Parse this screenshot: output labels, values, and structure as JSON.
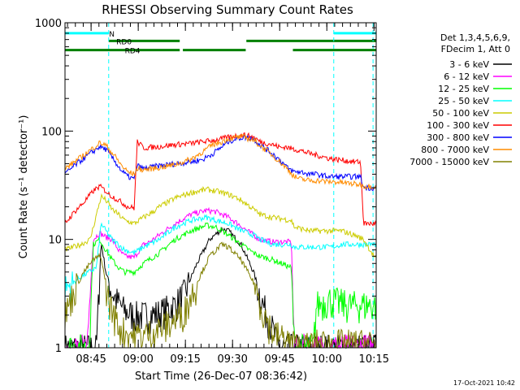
{
  "chart_data": {
    "type": "line",
    "title": "RHESSI Observing Summary Count Rates",
    "xlabel": "Start Time (26-Dec-07 08:36:42)",
    "ylabel": "Count Rate (s⁻¹ detector⁻¹)",
    "yscale": "log",
    "ylim": [
      1,
      1000
    ],
    "xlim_minutes": [
      0,
      99
    ],
    "x_ticks": [
      {
        "m": 8.3,
        "label": "08:45"
      },
      {
        "m": 23.3,
        "label": "09:00"
      },
      {
        "m": 38.3,
        "label": "09:15"
      },
      {
        "m": 53.3,
        "label": "09:30"
      },
      {
        "m": 68.3,
        "label": "09:45"
      },
      {
        "m": 83.3,
        "label": "10:00"
      },
      {
        "m": 98.3,
        "label": "10:15"
      }
    ],
    "y_ticks": [
      {
        "v": 1,
        "label": "1"
      },
      {
        "v": 10,
        "label": "10"
      },
      {
        "v": 100,
        "label": "100"
      },
      {
        "v": 1000,
        "label": "1000"
      }
    ],
    "legend_header": [
      "Det 1,3,4,5,6,9,",
      "FDecim 1, Att 0"
    ],
    "footer_date": "17-Oct-2021 10:42",
    "bars": [
      {
        "label": "N",
        "color": "#00ffff",
        "segments": [
          [
            0,
            13.9
          ],
          [
            85.5,
            99
          ]
        ],
        "level": 800
      },
      {
        "label": "RD0",
        "color": "#008000",
        "segments": [
          [
            13.9,
            36.5
          ],
          [
            57.7,
            99
          ]
        ],
        "level": 680
      },
      {
        "label": "RD4",
        "color": "#008000",
        "segments": [
          [
            0,
            36.5
          ],
          [
            37.5,
            57.5
          ],
          [
            72.5,
            99
          ]
        ],
        "level": 560
      }
    ],
    "vlines": [
      {
        "m": 13.9,
        "color": "#00ffff"
      },
      {
        "m": 85.5,
        "color": "#00ffff"
      },
      {
        "m": 98.0,
        "color": "#00ffff"
      }
    ],
    "series": [
      {
        "name": "3 - 6 keV",
        "color": "#000000",
        "points": [
          [
            0,
            1
          ],
          [
            5,
            1
          ],
          [
            10,
            1
          ],
          [
            11.5,
            9.5
          ],
          [
            13,
            5
          ],
          [
            15,
            3.2
          ],
          [
            17,
            2.6
          ],
          [
            19,
            2.2
          ],
          [
            22,
            2
          ],
          [
            25,
            2
          ],
          [
            30,
            2.1
          ],
          [
            35,
            2.5
          ],
          [
            38,
            3.2
          ],
          [
            42,
            6
          ],
          [
            46,
            10
          ],
          [
            50,
            12.5
          ],
          [
            52,
            12
          ],
          [
            56,
            9
          ],
          [
            60,
            5
          ],
          [
            63,
            2.5
          ],
          [
            66,
            1.5
          ],
          [
            68,
            1
          ],
          [
            99,
            1
          ]
        ]
      },
      {
        "name": "6 - 12 keV",
        "color": "#ff00ff",
        "points": [
          [
            0,
            1
          ],
          [
            7,
            1
          ],
          [
            9,
            10
          ],
          [
            11,
            11.5
          ],
          [
            13,
            10.5
          ],
          [
            15,
            10
          ],
          [
            17,
            8
          ],
          [
            19,
            7
          ],
          [
            22,
            6.8
          ],
          [
            25,
            9
          ],
          [
            27,
            9.5
          ],
          [
            30,
            11
          ],
          [
            35,
            14
          ],
          [
            40,
            17
          ],
          [
            45,
            18.5
          ],
          [
            48,
            18
          ],
          [
            52,
            16
          ],
          [
            55,
            14
          ],
          [
            58,
            12
          ],
          [
            60,
            11
          ],
          [
            62,
            10
          ],
          [
            66,
            9.5
          ],
          [
            72,
            9.5
          ],
          [
            73,
            1
          ],
          [
            99,
            1
          ]
        ]
      },
      {
        "name": "12 - 25 keV",
        "color": "#00ff00",
        "points": [
          [
            0,
            1
          ],
          [
            7,
            1
          ],
          [
            8,
            1.5
          ],
          [
            9,
            9
          ],
          [
            11,
            10
          ],
          [
            13,
            8
          ],
          [
            15,
            6.5
          ],
          [
            17,
            5.5
          ],
          [
            19,
            5
          ],
          [
            22,
            5
          ],
          [
            25,
            6
          ],
          [
            30,
            7.5
          ],
          [
            35,
            10
          ],
          [
            40,
            12
          ],
          [
            45,
            13.5
          ],
          [
            48,
            13
          ],
          [
            52,
            11
          ],
          [
            56,
            9
          ],
          [
            60,
            7.5
          ],
          [
            62,
            7
          ],
          [
            66,
            6.5
          ],
          [
            72,
            5.5
          ],
          [
            73,
            1
          ],
          [
            79,
            1
          ],
          [
            80,
            2.5
          ],
          [
            84,
            2.8
          ],
          [
            90,
            2.5
          ],
          [
            99,
            2.5
          ]
        ]
      },
      {
        "name": "25 - 50 keV",
        "color": "#00ffff",
        "points": [
          [
            0,
            3.5
          ],
          [
            5,
            4.5
          ],
          [
            10,
            5.5
          ],
          [
            11.5,
            14
          ],
          [
            13,
            12
          ],
          [
            15,
            10
          ],
          [
            17,
            9
          ],
          [
            19,
            8
          ],
          [
            22,
            7.5
          ],
          [
            25,
            8.5
          ],
          [
            30,
            10
          ],
          [
            35,
            13
          ],
          [
            40,
            15
          ],
          [
            45,
            16
          ],
          [
            48,
            15
          ],
          [
            52,
            14
          ],
          [
            55,
            12.5
          ],
          [
            58,
            11.5
          ],
          [
            60,
            11
          ],
          [
            62,
            10
          ],
          [
            66,
            9
          ],
          [
            72,
            9
          ],
          [
            73,
            8.5
          ],
          [
            78,
            8.5
          ],
          [
            85,
            8.5
          ],
          [
            88,
            9
          ],
          [
            99,
            9
          ]
        ]
      },
      {
        "name": "50 - 100 keV",
        "color": "#cccc00",
        "points": [
          [
            0,
            8
          ],
          [
            5,
            9
          ],
          [
            8,
            10
          ],
          [
            11.5,
            25
          ],
          [
            13,
            23
          ],
          [
            15,
            19
          ],
          [
            17,
            17
          ],
          [
            19,
            15
          ],
          [
            22,
            14
          ],
          [
            25,
            16
          ],
          [
            28,
            18
          ],
          [
            30,
            20
          ],
          [
            35,
            24
          ],
          [
            40,
            27
          ],
          [
            45,
            29
          ],
          [
            48,
            28
          ],
          [
            52,
            26
          ],
          [
            55,
            24
          ],
          [
            58,
            21
          ],
          [
            60,
            19
          ],
          [
            62,
            17
          ],
          [
            66,
            16
          ],
          [
            72,
            15
          ],
          [
            73,
            13
          ],
          [
            78,
            12
          ],
          [
            85,
            12
          ],
          [
            88,
            12
          ],
          [
            92,
            11
          ],
          [
            95,
            10
          ],
          [
            99,
            6.5
          ]
        ]
      },
      {
        "name": "100 - 300 keV",
        "color": "#ff0000",
        "points": [
          [
            0,
            14
          ],
          [
            3,
            18
          ],
          [
            6,
            22
          ],
          [
            9,
            28
          ],
          [
            11,
            31
          ],
          [
            13,
            28
          ],
          [
            14,
            26
          ],
          [
            16,
            24
          ],
          [
            18,
            22
          ],
          [
            20,
            20
          ],
          [
            22,
            19.5
          ],
          [
            23,
            80
          ],
          [
            25,
            70
          ],
          [
            30,
            72
          ],
          [
            35,
            75
          ],
          [
            40,
            77
          ],
          [
            44,
            80
          ],
          [
            47,
            82
          ],
          [
            50,
            85
          ],
          [
            52,
            88
          ],
          [
            55,
            91
          ],
          [
            57,
            92
          ],
          [
            60,
            88
          ],
          [
            62,
            80
          ],
          [
            66,
            75
          ],
          [
            69,
            70
          ],
          [
            70,
            72
          ],
          [
            71,
            70
          ],
          [
            73,
            68
          ],
          [
            75,
            66
          ],
          [
            78,
            62
          ],
          [
            80,
            60
          ],
          [
            84,
            56
          ],
          [
            86,
            55
          ],
          [
            88,
            54
          ],
          [
            90,
            53
          ],
          [
            92,
            52
          ],
          [
            94,
            52
          ],
          [
            95,
            14
          ],
          [
            99,
            14
          ]
        ]
      },
      {
        "name": "300 - 800 keV",
        "color": "#0000ff",
        "points": [
          [
            0,
            40
          ],
          [
            3,
            48
          ],
          [
            6,
            56
          ],
          [
            9,
            65
          ],
          [
            11,
            72
          ],
          [
            13,
            68
          ],
          [
            14,
            62
          ],
          [
            16,
            52
          ],
          [
            18,
            43
          ],
          [
            20,
            38
          ],
          [
            22,
            36
          ],
          [
            23,
            48
          ],
          [
            25,
            45
          ],
          [
            30,
            48
          ],
          [
            35,
            50
          ],
          [
            40,
            52
          ],
          [
            44,
            55
          ],
          [
            47,
            62
          ],
          [
            50,
            72
          ],
          [
            52,
            80
          ],
          [
            55,
            86
          ],
          [
            57,
            88
          ],
          [
            60,
            85
          ],
          [
            62,
            75
          ],
          [
            66,
            62
          ],
          [
            69,
            52
          ],
          [
            71,
            45
          ],
          [
            73,
            42
          ],
          [
            75,
            42
          ],
          [
            78,
            40
          ],
          [
            80,
            40
          ],
          [
            84,
            38
          ],
          [
            86,
            38
          ],
          [
            90,
            38
          ],
          [
            94,
            38
          ],
          [
            95,
            30
          ],
          [
            99,
            30
          ]
        ]
      },
      {
        "name": "800 - 7000 keV",
        "color": "#ff8c00",
        "points": [
          [
            0,
            45
          ],
          [
            3,
            52
          ],
          [
            6,
            60
          ],
          [
            9,
            70
          ],
          [
            11,
            78
          ],
          [
            13,
            74
          ],
          [
            14,
            68
          ],
          [
            16,
            58
          ],
          [
            18,
            48
          ],
          [
            20,
            42
          ],
          [
            22,
            40
          ],
          [
            23,
            45
          ],
          [
            25,
            44
          ],
          [
            30,
            46
          ],
          [
            35,
            49
          ],
          [
            40,
            55
          ],
          [
            44,
            65
          ],
          [
            47,
            75
          ],
          [
            50,
            80
          ],
          [
            52,
            85
          ],
          [
            55,
            88
          ],
          [
            57,
            88
          ],
          [
            60,
            82
          ],
          [
            62,
            74
          ],
          [
            66,
            60
          ],
          [
            69,
            50
          ],
          [
            71,
            44
          ],
          [
            73,
            38
          ],
          [
            75,
            36
          ],
          [
            78,
            35
          ],
          [
            80,
            35
          ],
          [
            84,
            34
          ],
          [
            86,
            34
          ],
          [
            90,
            33
          ],
          [
            94,
            32
          ],
          [
            95,
            31
          ],
          [
            99,
            31
          ]
        ]
      },
      {
        "name": "7000 - 15000 keV",
        "color": "#808000",
        "points": [
          [
            0,
            2
          ],
          [
            3,
            3.5
          ],
          [
            6,
            5
          ],
          [
            9,
            6.5
          ],
          [
            11,
            7
          ],
          [
            12,
            6
          ],
          [
            13,
            3.5
          ],
          [
            15,
            2.2
          ],
          [
            17,
            1.6
          ],
          [
            19,
            1.4
          ],
          [
            22,
            1.3
          ],
          [
            25,
            1.3
          ],
          [
            30,
            1.5
          ],
          [
            35,
            1.8
          ],
          [
            38,
            2.2
          ],
          [
            42,
            4
          ],
          [
            46,
            7
          ],
          [
            50,
            9
          ],
          [
            52,
            8.5
          ],
          [
            56,
            6.5
          ],
          [
            60,
            4
          ],
          [
            63,
            2.2
          ],
          [
            66,
            1.4
          ],
          [
            70,
            1.2
          ],
          [
            75,
            1
          ],
          [
            80,
            1.1
          ],
          [
            84,
            1.1
          ],
          [
            90,
            1.1
          ],
          [
            99,
            1.1
          ]
        ]
      }
    ]
  }
}
